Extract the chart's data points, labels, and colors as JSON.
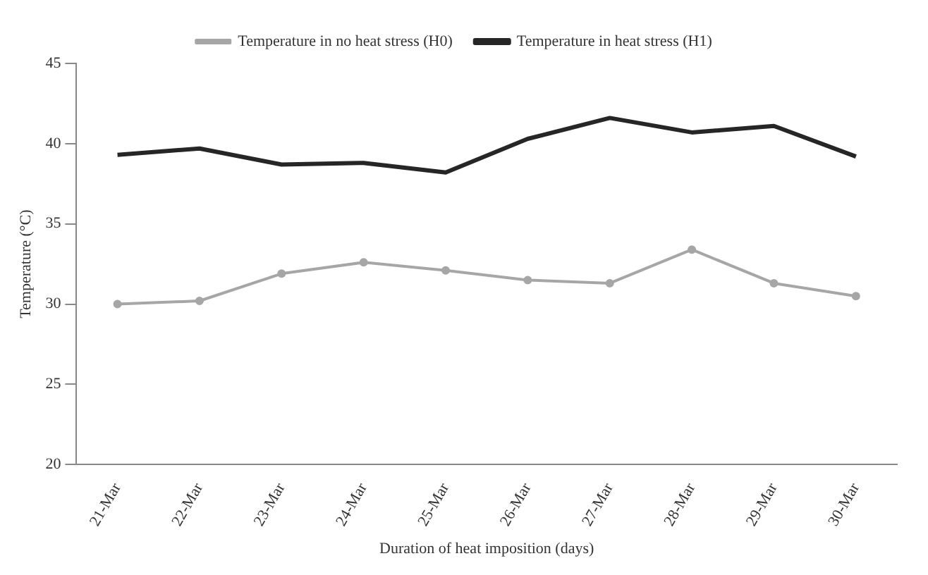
{
  "chart_data": {
    "type": "line",
    "xlabel": "Duration of heat imposition (days)",
    "ylabel": "Temperature (°C)",
    "categories": [
      "21-Mar",
      "22-Mar",
      "23-Mar",
      "24-Mar",
      "25-Mar",
      "26-Mar",
      "27-Mar",
      "28-Mar",
      "29-Mar",
      "30-Mar"
    ],
    "series": [
      {
        "name": "Temperature in no heat stress (H0)",
        "color": "#a6a6a6",
        "marker": "circle",
        "values": [
          30.0,
          30.2,
          31.9,
          32.6,
          32.1,
          31.5,
          31.3,
          33.4,
          31.3,
          30.5
        ]
      },
      {
        "name": "Temperature in heat stress (H1)",
        "color": "#262626",
        "marker": "none",
        "values": [
          39.3,
          39.7,
          38.7,
          38.8,
          38.2,
          40.3,
          41.6,
          40.7,
          41.1,
          39.2
        ]
      }
    ],
    "ylim": [
      20,
      45
    ],
    "yticks": [
      20,
      25,
      30,
      35,
      40,
      45
    ],
    "grid": false,
    "legend": "top",
    "line_style": "solid"
  }
}
